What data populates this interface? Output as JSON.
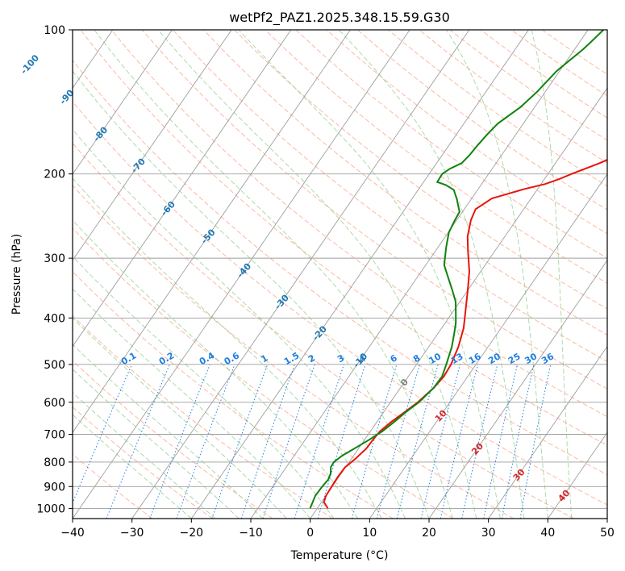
{
  "chart_data": {
    "type": "line",
    "title": "wetPf2_PAZ1.2025.348.15.59.G30",
    "xlabel": "Temperature (°C)",
    "ylabel": "Pressure (hPa)",
    "xlim": [
      -40,
      50
    ],
    "ylim": [
      1050,
      100
    ],
    "x_ticks": [
      -40,
      -30,
      -20,
      -10,
      0,
      10,
      20,
      30,
      40,
      50
    ],
    "x_tick_labels": [
      "−40",
      "−30",
      "−20",
      "−10",
      "0",
      "10",
      "20",
      "30",
      "40",
      "50"
    ],
    "y_ticks": [
      1000,
      900,
      800,
      700,
      600,
      500,
      400,
      300,
      200,
      100
    ],
    "y_tick_labels": [
      "1000",
      "900",
      "800",
      "700",
      "600",
      "500",
      "400",
      "300",
      "200",
      "100"
    ],
    "series": [
      {
        "name": "Temperature",
        "color": "#e8140c",
        "points": [
          [
            1.8,
            1000
          ],
          [
            0.4,
            970
          ],
          [
            0,
            940
          ],
          [
            -0.1,
            900
          ],
          [
            -0.2,
            860
          ],
          [
            -0.1,
            820
          ],
          [
            0.6,
            790
          ],
          [
            1.3,
            750
          ],
          [
            1.4,
            720
          ],
          [
            1.6,
            690
          ],
          [
            2.4,
            660
          ],
          [
            3.5,
            630
          ],
          [
            4.6,
            600
          ],
          [
            5.6,
            560
          ],
          [
            6,
            530
          ],
          [
            5.8,
            500
          ],
          [
            5,
            460
          ],
          [
            3.7,
            420
          ],
          [
            2.2,
            390
          ],
          [
            0,
            350
          ],
          [
            -1.9,
            320
          ],
          [
            -4.5,
            290
          ],
          [
            -6.3,
            270
          ],
          [
            -7.6,
            250
          ],
          [
            -8.1,
            237
          ],
          [
            -6.6,
            225
          ],
          [
            -2.2,
            215
          ],
          [
            0.7,
            210
          ],
          [
            2.5,
            205
          ],
          [
            4,
            200
          ],
          [
            7.4,
            190
          ],
          [
            13.6,
            170
          ],
          [
            20.2,
            155
          ],
          [
            26.8,
            142
          ],
          [
            32,
            133
          ],
          [
            34,
            127
          ],
          [
            35.4,
            122
          ],
          [
            36.7,
            118
          ],
          [
            40,
            113
          ],
          [
            42.5,
            109
          ],
          [
            45.5,
            105
          ],
          [
            50,
            101
          ]
        ]
      },
      {
        "name": "Dewpoint",
        "color": "#0e830e",
        "points": [
          [
            -1.2,
            1000
          ],
          [
            -1.5,
            970
          ],
          [
            -1.8,
            940
          ],
          [
            -1.7,
            900
          ],
          [
            -1.5,
            870
          ],
          [
            -1.8,
            845
          ],
          [
            -2.5,
            820
          ],
          [
            -2.6,
            800
          ],
          [
            -1.9,
            775
          ],
          [
            -0.7,
            750
          ],
          [
            0.7,
            720
          ],
          [
            2,
            690
          ],
          [
            2.9,
            660
          ],
          [
            3.7,
            630
          ],
          [
            4.8,
            600
          ],
          [
            5.6,
            560
          ],
          [
            5.7,
            530
          ],
          [
            5,
            500
          ],
          [
            3.9,
            460
          ],
          [
            2.7,
            430
          ],
          [
            1.8,
            410
          ],
          [
            0.6,
            390
          ],
          [
            -0.7,
            370
          ],
          [
            -2.6,
            350
          ],
          [
            -4.7,
            330
          ],
          [
            -6.9,
            310
          ],
          [
            -8.6,
            285
          ],
          [
            -9.9,
            265
          ],
          [
            -10.3,
            250
          ],
          [
            -10.5,
            240
          ],
          [
            -12.4,
            226
          ],
          [
            -14,
            216
          ],
          [
            -15.9,
            211
          ],
          [
            -17.7,
            208
          ],
          [
            -17.8,
            200
          ],
          [
            -17.1,
            195
          ],
          [
            -15.8,
            190
          ],
          [
            -15.4,
            183
          ],
          [
            -15.2,
            175
          ],
          [
            -14.8,
            165
          ],
          [
            -14.3,
            157
          ],
          [
            -12.4,
            145
          ],
          [
            -11.4,
            135
          ],
          [
            -10.5,
            122
          ],
          [
            -9.6,
            116
          ],
          [
            -8.6,
            110
          ],
          [
            -8.1,
            106
          ],
          [
            -7.4,
            100
          ]
        ]
      }
    ],
    "dry_adiabat_labels": [
      "-100",
      "-90",
      "-80",
      "-70",
      "-60",
      "-50",
      "-40",
      "-30",
      "-20",
      "-10",
      "0",
      "10",
      "20",
      "30",
      "40"
    ],
    "mixing_ratio_labels": [
      "0.1",
      "0.2",
      "0.4",
      "0.6",
      "1",
      "1.5",
      "2",
      "3",
      "4",
      "6",
      "8",
      "10",
      "13",
      "16",
      "20",
      "25",
      "30",
      "36"
    ],
    "colors": {
      "isotherm": "#9e9e9e",
      "dry_adiabat": "#f9a183",
      "moist_adiabat": "#9ed39b",
      "mixing_ratio": "#1f7fe0",
      "label_blue": "#1f77b4",
      "label_red": "#d62728"
    }
  }
}
